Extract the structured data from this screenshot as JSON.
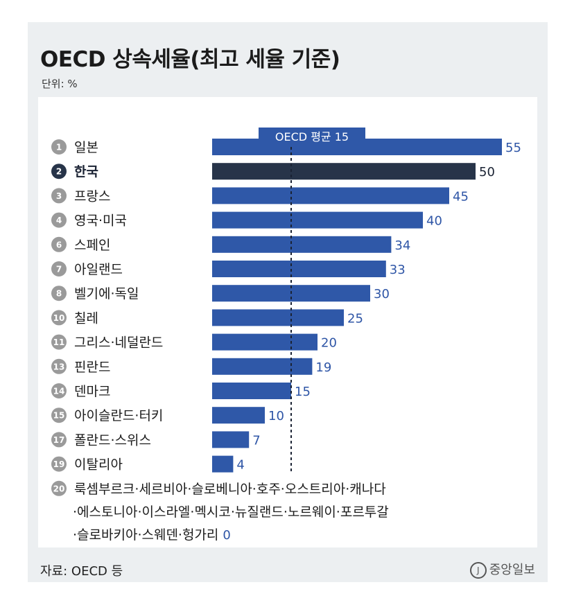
{
  "title": "OECD 상속세율(최고 세율 기준)",
  "unit": "단위: %",
  "source": "자료: OECD 등",
  "logo": "중앙일보",
  "logo_mark": "J",
  "colors": {
    "bar": "#2f58a8",
    "highlight_bar": "#273449",
    "rank_circle": "#9a9a9a",
    "highlight_rank_circle": "#273449",
    "avg_box": "#2f58a8",
    "value_text": "#2e55a6"
  },
  "chart_data": {
    "type": "bar",
    "orientation": "horizontal",
    "average": {
      "label": "OECD 평균 15",
      "value": 15
    },
    "ranks": [
      "1",
      "2",
      "3",
      "4",
      "6",
      "7",
      "8",
      "10",
      "11",
      "13",
      "14",
      "15",
      "17",
      "19"
    ],
    "categories": [
      "일본",
      "한국",
      "프랑스",
      "영국·미국",
      "스페인",
      "아일랜드",
      "벨기에·독일",
      "칠레",
      "그리스·네덜란드",
      "핀란드",
      "덴마크",
      "아이슬란드·터키",
      "폴란드·스위스",
      "이탈리아"
    ],
    "values": [
      55,
      50,
      45,
      40,
      34,
      33,
      30,
      25,
      20,
      19,
      15,
      10,
      7,
      4
    ],
    "highlight": "한국",
    "grid": false,
    "footnote": {
      "rank": "20",
      "lines": [
        "룩셈부르크·세르비아·슬로베니아·호주·오스트리아·캐나다",
        "·에스토니아·이스라엘·멕시코·뉴질랜드·노르웨이·포르투갈",
        "·슬로바키아·스웨덴·헝가리"
      ],
      "value": "0"
    }
  }
}
